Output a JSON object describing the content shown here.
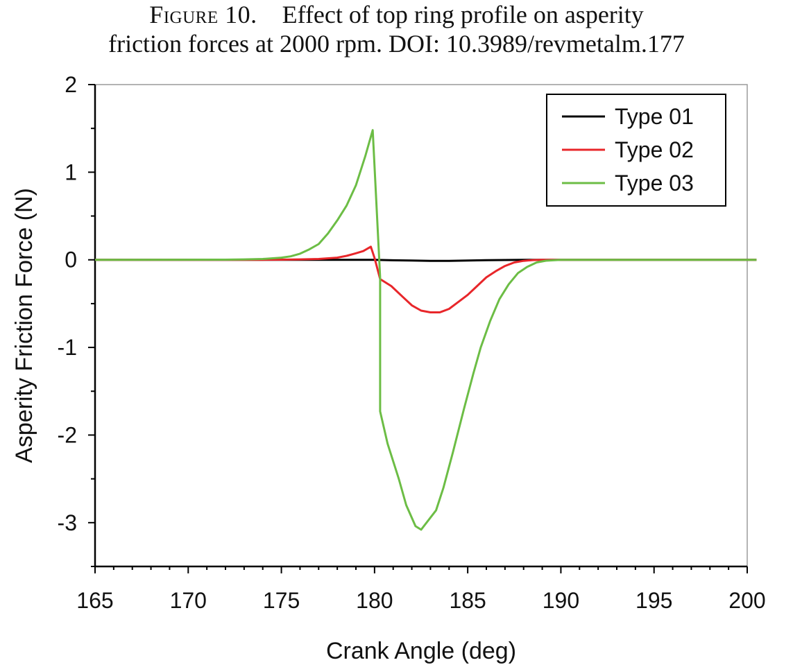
{
  "caption": {
    "figure_label": "Figure 10.",
    "line1": "Effect of top ring profile on asperity",
    "line2": "friction forces at 2000 rpm. DOI: 10.3989/revmetalm.177"
  },
  "chart_data": {
    "type": "line",
    "title": "",
    "xlabel": "Crank Angle (deg)",
    "ylabel": "Asperity Friction Force (N)",
    "xlim": [
      165,
      200
    ],
    "ylim": [
      -3.5,
      2
    ],
    "xticks": [
      165,
      170,
      175,
      180,
      185,
      190,
      195,
      200
    ],
    "xtick_labels": [
      "165",
      "170",
      "175",
      "180",
      "185",
      "190",
      "195",
      "200"
    ],
    "yticks": [
      -3,
      -2,
      -1,
      0,
      1,
      2
    ],
    "ytick_labels": [
      "-3",
      "-2",
      "-1",
      "0",
      "1",
      "2"
    ],
    "grid": false,
    "legend_position": "top-right",
    "series": [
      {
        "name": "Type 01",
        "color": "#000000",
        "points": [
          [
            165,
            0
          ],
          [
            179,
            0
          ],
          [
            180,
            0.0
          ],
          [
            181,
            -0.005
          ],
          [
            182,
            -0.008
          ],
          [
            183,
            -0.012
          ],
          [
            184,
            -0.012
          ],
          [
            185,
            -0.008
          ],
          [
            186,
            -0.004
          ],
          [
            187,
            -0.002
          ],
          [
            188,
            0
          ],
          [
            200.5,
            0
          ]
        ]
      },
      {
        "name": "Type 02",
        "color": "#e8262a",
        "points": [
          [
            165,
            0
          ],
          [
            174,
            0
          ],
          [
            175,
            0.002
          ],
          [
            176,
            0.005
          ],
          [
            177,
            0.01
          ],
          [
            178,
            0.025
          ],
          [
            178.5,
            0.045
          ],
          [
            179,
            0.075
          ],
          [
            179.4,
            0.1
          ],
          [
            179.8,
            0.15
          ],
          [
            180.0,
            0.02
          ],
          [
            180.3,
            -0.22
          ],
          [
            180.9,
            -0.3
          ],
          [
            181.5,
            -0.42
          ],
          [
            182.0,
            -0.52
          ],
          [
            182.5,
            -0.58
          ],
          [
            183.0,
            -0.6
          ],
          [
            183.5,
            -0.6
          ],
          [
            184.0,
            -0.56
          ],
          [
            184.5,
            -0.48
          ],
          [
            185.0,
            -0.4
          ],
          [
            185.5,
            -0.3
          ],
          [
            186.0,
            -0.2
          ],
          [
            186.5,
            -0.13
          ],
          [
            187.0,
            -0.07
          ],
          [
            187.5,
            -0.03
          ],
          [
            188.0,
            -0.012
          ],
          [
            188.5,
            -0.003
          ],
          [
            189.0,
            0
          ],
          [
            200.5,
            0
          ]
        ]
      },
      {
        "name": "Type 03",
        "color": "#6cbd45",
        "points": [
          [
            165,
            0
          ],
          [
            172,
            0.002
          ],
          [
            173,
            0.005
          ],
          [
            174,
            0.01
          ],
          [
            175,
            0.025
          ],
          [
            175.5,
            0.04
          ],
          [
            176.0,
            0.07
          ],
          [
            176.5,
            0.12
          ],
          [
            177.0,
            0.18
          ],
          [
            177.5,
            0.3
          ],
          [
            178.0,
            0.45
          ],
          [
            178.5,
            0.62
          ],
          [
            179.0,
            0.85
          ],
          [
            179.5,
            1.18
          ],
          [
            179.9,
            1.48
          ],
          [
            180.3,
            -0.2
          ],
          [
            180.3,
            -1.73
          ],
          [
            180.7,
            -2.1
          ],
          [
            181.3,
            -2.5
          ],
          [
            181.7,
            -2.8
          ],
          [
            182.2,
            -3.04
          ],
          [
            182.5,
            -3.08
          ],
          [
            183.3,
            -2.86
          ],
          [
            183.7,
            -2.6
          ],
          [
            184.2,
            -2.2
          ],
          [
            184.8,
            -1.7
          ],
          [
            185.3,
            -1.3
          ],
          [
            185.7,
            -1.0
          ],
          [
            186.2,
            -0.7
          ],
          [
            186.7,
            -0.45
          ],
          [
            187.2,
            -0.28
          ],
          [
            187.7,
            -0.15
          ],
          [
            188.2,
            -0.08
          ],
          [
            188.7,
            -0.03
          ],
          [
            189.2,
            -0.01
          ],
          [
            190.0,
            0
          ],
          [
            200.5,
            0
          ]
        ]
      }
    ]
  }
}
